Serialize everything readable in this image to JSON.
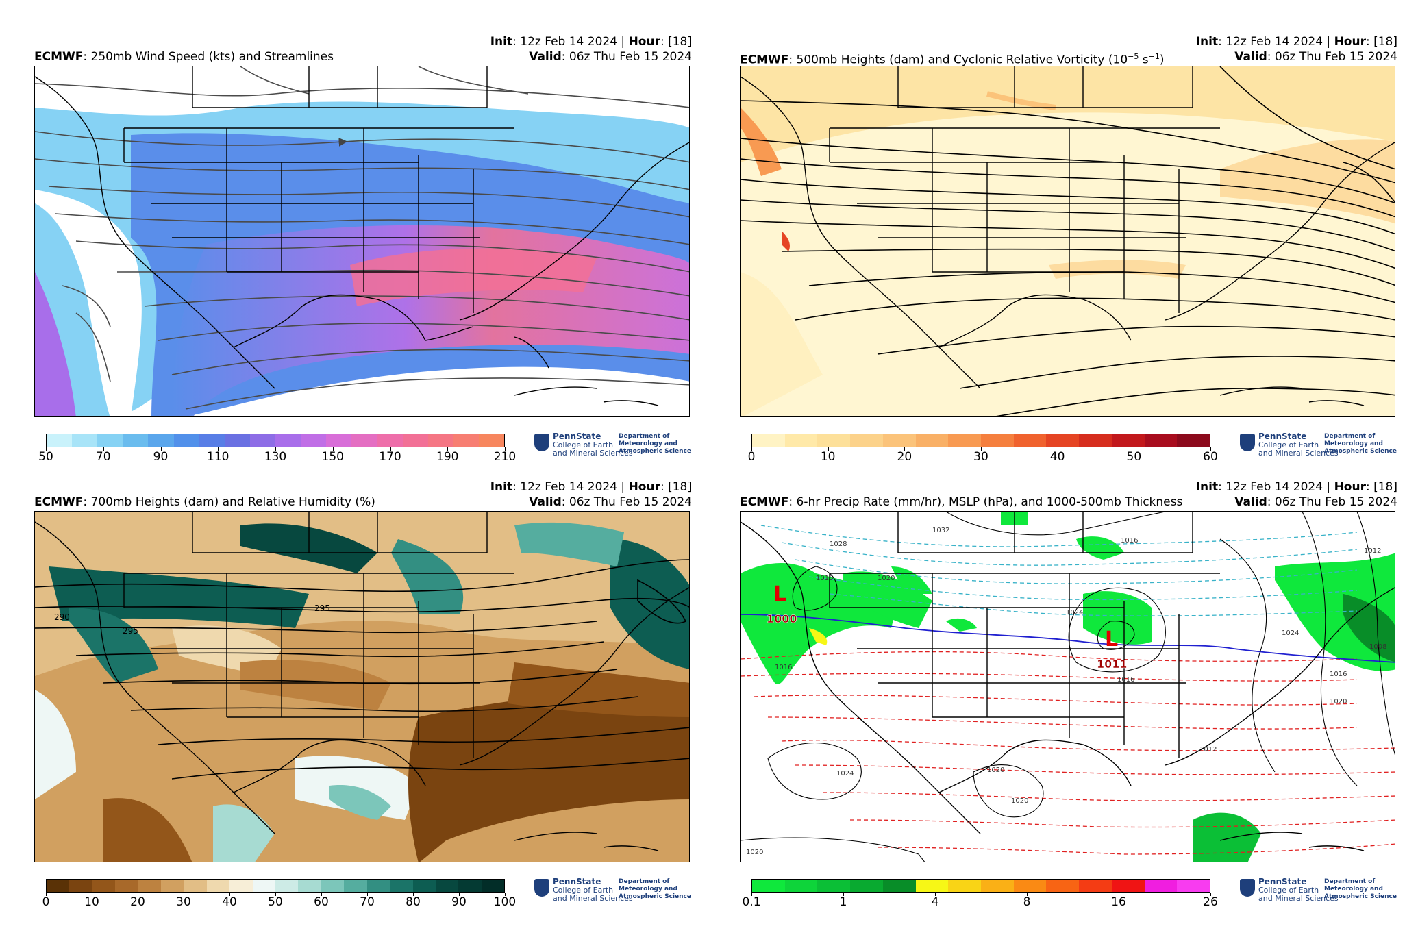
{
  "panels": [
    {
      "model": "ECMWF",
      "title": ": 250mb Wind Speed (kts) and Streamlines",
      "init_label": "Init",
      "init_value": ": 12z Feb 14 2024 | ",
      "hour_label": "Hour",
      "hour_value": ": [18]",
      "valid_label": "Valid",
      "valid_value": ": 06z Thu Feb 15 2024",
      "colorbar": {
        "ticks": [
          "50",
          "70",
          "90",
          "110",
          "130",
          "150",
          "170",
          "190",
          "210"
        ],
        "colors": [
          "#c9f2fb",
          "#a8e4f8",
          "#86d2f4",
          "#6abcee",
          "#5aa6ec",
          "#5190ea",
          "#587ee6",
          "#6a70e2",
          "#8d6de6",
          "#a86eea",
          "#c06ee6",
          "#d86ed8",
          "#e46ec2",
          "#ee6eaa",
          "#f27096",
          "#f57684",
          "#f77e72",
          "#f7865e"
        ]
      },
      "map_style": "wind"
    },
    {
      "model": "ECMWF",
      "title": ": 500mb Heights (dam) and Cyclonic Relative Vorticity (10",
      "title_sup": "−5",
      "title_mid": " s",
      "title_sup2": "−1",
      "title_end": ")",
      "init_label": "Init",
      "init_value": ": 12z Feb 14 2024 | ",
      "hour_label": "Hour",
      "hour_value": ": [18]",
      "valid_label": "Valid",
      "valid_value": ": 06z Thu Feb 15 2024",
      "colorbar": {
        "ticks": [
          "0",
          "10",
          "20",
          "30",
          "40",
          "50",
          "60"
        ],
        "colors": [
          "#fff3c4",
          "#ffe9a8",
          "#fde09a",
          "#fcd28a",
          "#fbc37a",
          "#f9b066",
          "#f89a52",
          "#f57f3e",
          "#f0622e",
          "#e54423",
          "#d62d1e",
          "#c2181c",
          "#a80d1e",
          "#8c0a1c"
        ]
      },
      "map_style": "vort"
    },
    {
      "model": "ECMWF",
      "title": ": 700mb Heights (dam) and Relative Humidity (%)",
      "init_label": "Init",
      "init_value": ": 12z Feb 14 2024 | ",
      "hour_label": "Hour",
      "hour_value": ": [18]",
      "valid_label": "Valid",
      "valid_value": ": 06z Thu Feb 15 2024",
      "colorbar": {
        "ticks": [
          "0",
          "10",
          "20",
          "30",
          "40",
          "50",
          "60",
          "70",
          "80",
          "90",
          "100"
        ],
        "colors": [
          "#5a3206",
          "#7a4410",
          "#93561a",
          "#a8692a",
          "#bd8240",
          "#d1a060",
          "#e2be86",
          "#efd9ae",
          "#f7eed7",
          "#eef7f5",
          "#cdebe6",
          "#a7dbd2",
          "#7cc6ba",
          "#55ad9f",
          "#338f82",
          "#1b7468",
          "#0d5d52",
          "#07483f",
          "#043a33",
          "#022d28"
        ]
      },
      "contour_labels": [
        "290",
        "295",
        "295"
      ],
      "map_style": "rh"
    },
    {
      "model": "ECMWF",
      "title": ": 6-hr Precip Rate (mm/hr), MSLP (hPa), and 1000-500mb Thickness",
      "init_label": "Init",
      "init_value": ": 12z Feb 14 2024 | ",
      "hour_label": "Hour",
      "hour_value": ": [18]",
      "valid_label": "Valid",
      "valid_value": ": 06z Thu Feb 15 2024",
      "colorbar": {
        "ticks": [
          "0.1",
          "1",
          "4",
          "8",
          "16",
          "26"
        ],
        "colors": [
          "#0fe83c",
          "#0ed43a",
          "#0bbf36",
          "#09aa30",
          "#088d28",
          "#f7f716",
          "#f9d416",
          "#fab016",
          "#fa8a14",
          "#f86414",
          "#f43c14",
          "#f01414",
          "#f01ee0",
          "#f83cf0"
        ]
      },
      "lows": [
        {
          "symbol": "L",
          "pressure": "1000"
        },
        {
          "symbol": "L",
          "pressure": "1011"
        }
      ],
      "isobar_labels": [
        "1028",
        "1032",
        "1016",
        "1020",
        "1024",
        "1016",
        "1016",
        "1024",
        "1016",
        "1012",
        "1008",
        "1016",
        "1020",
        "1020",
        "1024",
        "1020",
        "1020",
        "1012"
      ],
      "map_style": "precip"
    }
  ],
  "branding": {
    "university": "PennState",
    "college_line1": "College of Earth",
    "college_line2": "and Mineral Sciences",
    "dept_line1": "Department of",
    "dept_line2": "Meteorology and",
    "dept_line3": "Atmospheric Science"
  }
}
